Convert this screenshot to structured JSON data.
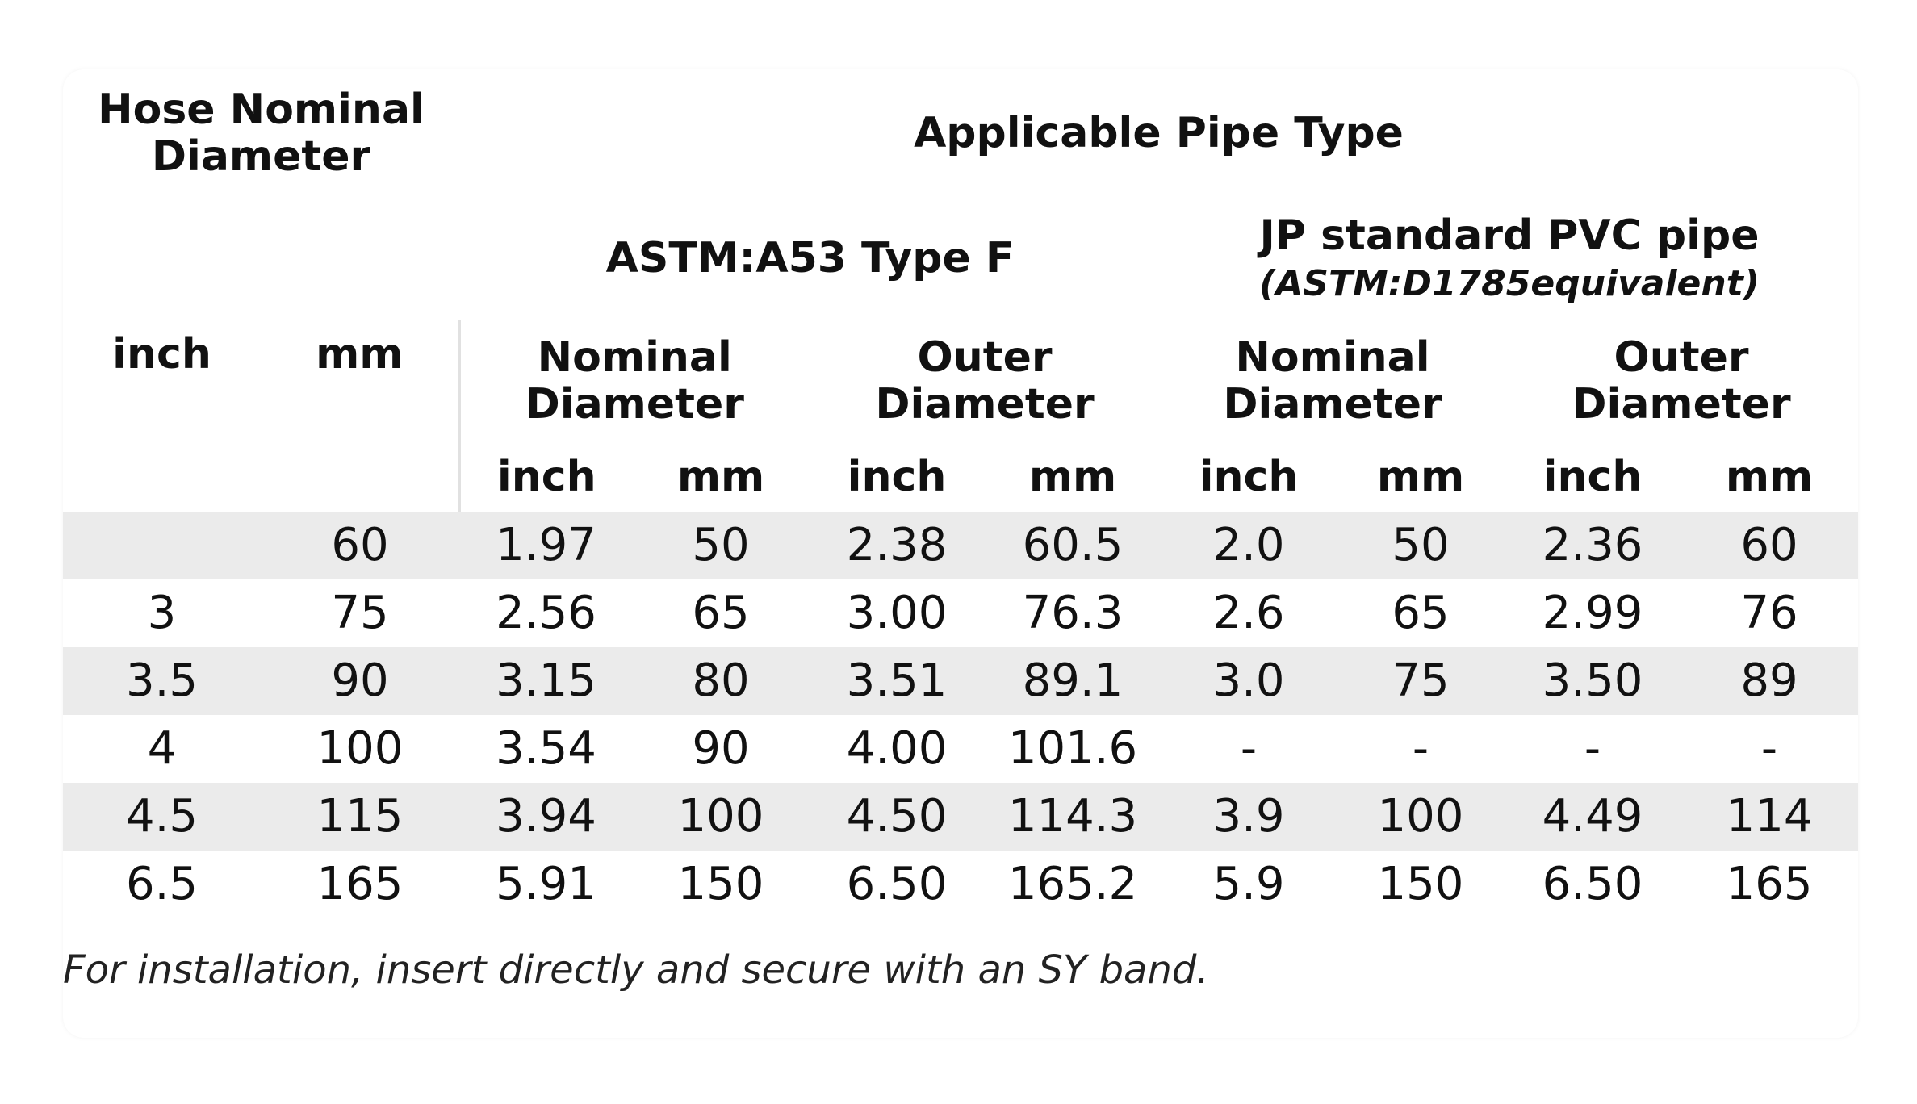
{
  "header": {
    "hose_nominal_diameter": "Hose Nominal Diameter",
    "applicable_pipe_type": "Applicable Pipe Type",
    "astm_a53": "ASTM:A53 Type F",
    "jp_pvc": "JP standard PVC pipe",
    "jp_pvc_note": "(ASTM:D1785equivalent)",
    "nominal_diameter": "Nominal Diameter",
    "outer_diameter": "Outer Diameter",
    "inch": "inch",
    "mm": "mm"
  },
  "rows": [
    [
      "",
      "60",
      "1.97",
      "50",
      "2.38",
      "60.5",
      "2.0",
      "50",
      "2.36",
      "60"
    ],
    [
      "3",
      "75",
      "2.56",
      "65",
      "3.00",
      "76.3",
      "2.6",
      "65",
      "2.99",
      "76"
    ],
    [
      "3.5",
      "90",
      "3.15",
      "80",
      "3.51",
      "89.1",
      "3.0",
      "75",
      "3.50",
      "89"
    ],
    [
      "4",
      "100",
      "3.54",
      "90",
      "4.00",
      "101.6",
      "-",
      "-",
      "-",
      "-"
    ],
    [
      "4.5",
      "115",
      "3.94",
      "100",
      "4.50",
      "114.3",
      "3.9",
      "100",
      "4.49",
      "114"
    ],
    [
      "6.5",
      "165",
      "5.91",
      "150",
      "6.50",
      "165.2",
      "5.9",
      "150",
      "6.50",
      "165"
    ]
  ],
  "footnote": "For installation, insert directly and secure with an SY band.",
  "colors": {
    "stripe": "#ebebeb",
    "border": "#e1e1e1",
    "text": "#111111"
  }
}
